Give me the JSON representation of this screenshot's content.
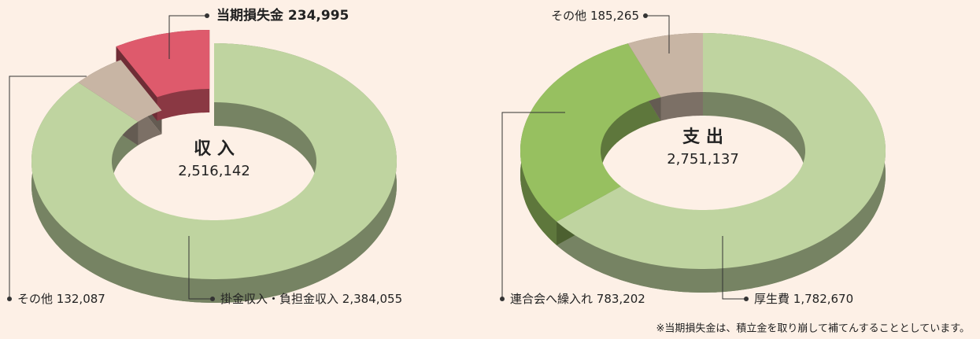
{
  "chart_data": [
    {
      "type": "pie",
      "donut": true,
      "title": "収 入",
      "subtitle": "2,516,142",
      "categories": [
        "掛金収入・負担金収入",
        "その他",
        "当期損失金"
      ],
      "values": [
        2384055,
        132087,
        234995
      ],
      "value_labels": [
        "2,384,055",
        "132,087",
        "234,995"
      ],
      "colors": [
        "#bfd4a0",
        "#c8b5a4",
        "#de5a6c"
      ],
      "explode": [
        false,
        false,
        true
      ]
    },
    {
      "type": "pie",
      "donut": true,
      "title": "支 出",
      "subtitle": "2,751,137",
      "categories": [
        "厚生費",
        "連合会へ繰入れ",
        "その他"
      ],
      "values": [
        1782670,
        783202,
        185265
      ],
      "value_labels": [
        "1,782,670",
        "783,202",
        "185,265"
      ],
      "colors": [
        "#bfd4a0",
        "#97c060",
        "#c8b5a4"
      ],
      "explode": [
        false,
        false,
        false
      ]
    }
  ],
  "note": "※当期損失金は、積立金を取り崩して補てんすることとしています。"
}
